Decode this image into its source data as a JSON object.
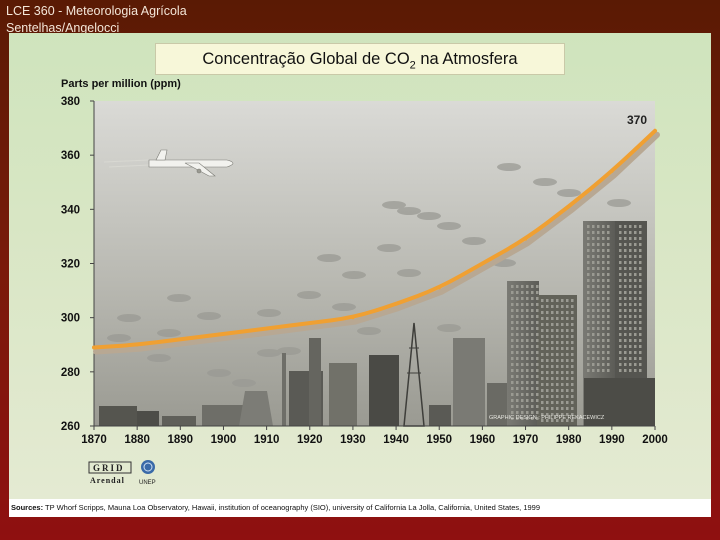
{
  "header": {
    "line1": "LCE 360 - Meteorologia Agrícola",
    "line2": "Sentelhas/Angelocci"
  },
  "title": {
    "main": "Concentração Global de CO",
    "sub": "2",
    "tail": " na Atmosfera"
  },
  "source": {
    "label": "Sources:",
    "text": " TP Whorf  Scripps, Mauna Loa Observatory, Hawaii, institution of oceanography (SIO), university of California La Jolla, California, United States, 1999"
  },
  "credit": "GRAPHIC DESIGN : PHILIPPE REKACEWICZ",
  "logos": {
    "grid": "GRID",
    "arendal": "Arendal",
    "unep": "UNEP"
  },
  "chart_data": {
    "type": "line",
    "title": "Concentração Global de CO2 na Atmosfera",
    "ylabel": "Parts per million (ppm)",
    "xlabel": "",
    "xlim": [
      1870,
      2000
    ],
    "ylim": [
      260,
      380
    ],
    "xticks": [
      "1870",
      "1880",
      "1890",
      "1900",
      "1910",
      "1920",
      "1930",
      "1940",
      "1950",
      "1960",
      "1970",
      "1980",
      "1990",
      "2000"
    ],
    "yticks": [
      "260",
      "280",
      "300",
      "320",
      "340",
      "360",
      "380"
    ],
    "grid": false,
    "annotation": "370",
    "series": [
      {
        "x": [
          1870,
          1880,
          1890,
          1900,
          1910,
          1920,
          1930,
          1940,
          1950,
          1960,
          1970,
          1980,
          1990,
          2000
        ],
        "values": [
          289,
          290,
          292,
          294,
          296,
          298,
          300,
          305,
          311,
          320,
          329,
          341,
          354,
          369
        ]
      }
    ],
    "colors": {
      "line": "#f0a032",
      "shadow": "#b8a893"
    }
  }
}
